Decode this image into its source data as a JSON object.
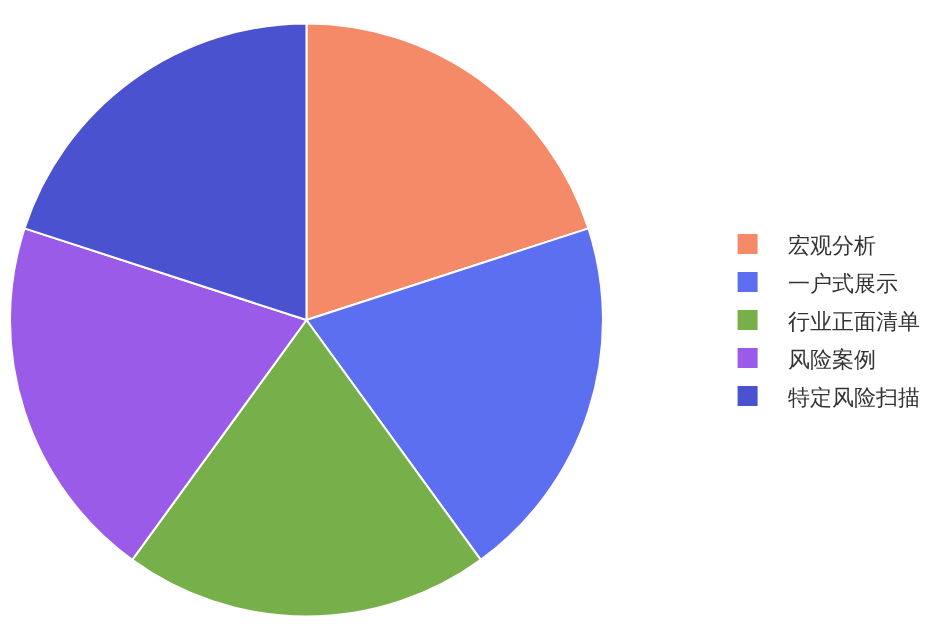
{
  "chart_data": {
    "type": "pie",
    "categories": [
      "宏观分析",
      "一户式展示",
      "行业正面清单",
      "风险案例",
      "特定风险扫描"
    ],
    "values": [
      20,
      20,
      20,
      20,
      20
    ],
    "colors": [
      "#f58a68",
      "#5c6ff0",
      "#77b04b",
      "#9a5be9",
      "#4a52cf"
    ],
    "legend": "right"
  }
}
